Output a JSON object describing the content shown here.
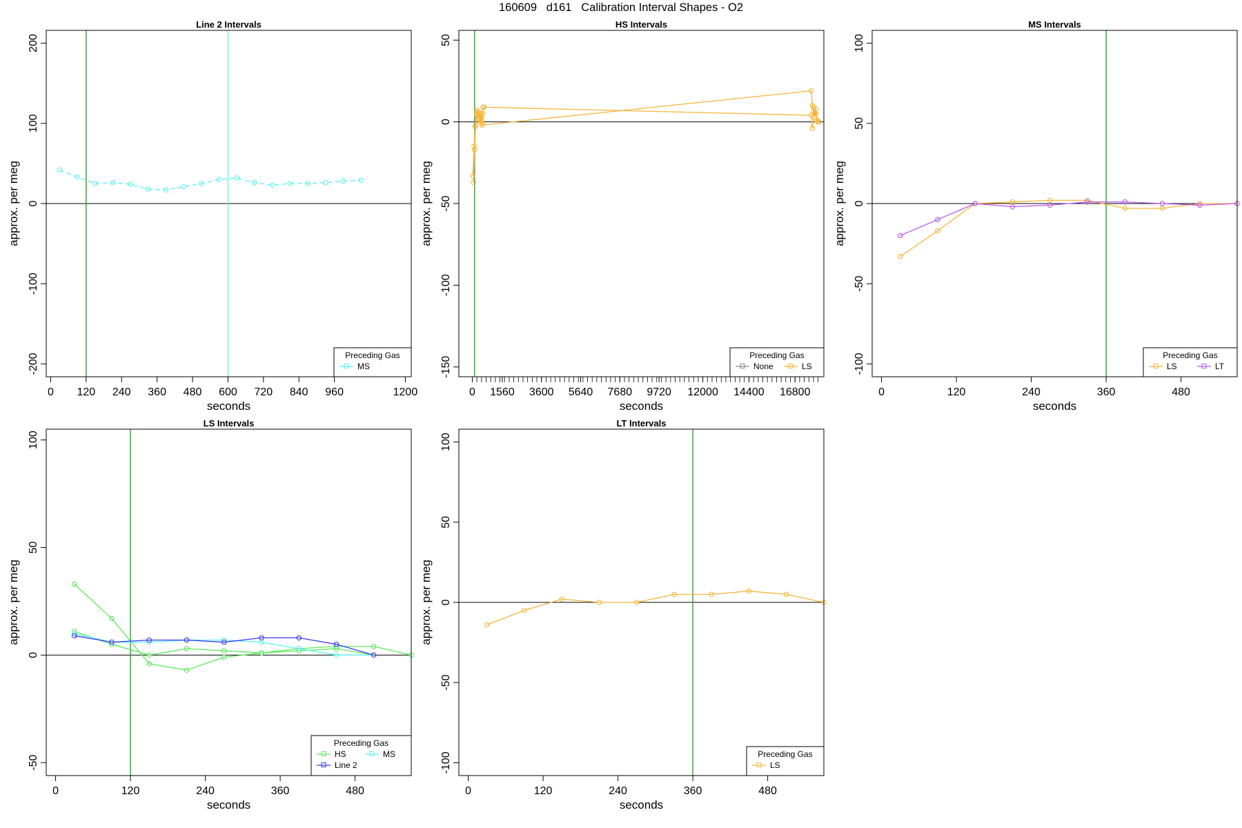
{
  "figure": {
    "title": "160609   d161   Calibration Interval Shapes - O2"
  },
  "colors": {
    "MS": "#5ef0f0",
    "LS": "#f5b53a",
    "HS": "#5de85d",
    "Line 2": "#3a3af0",
    "LT": "#b95ae8",
    "None": "#888888",
    "vline_green": "#2e8b2e",
    "vline_cyan": "#5ef0f0"
  },
  "chart_data": [
    {
      "type": "line",
      "title": "Line 2 Intervals",
      "xlabel": "seconds",
      "ylabel": "approx. per meg",
      "xlim": [
        -15,
        1220
      ],
      "ylim": [
        -216,
        216
      ],
      "xticks": [
        0,
        120,
        240,
        360,
        480,
        600,
        720,
        840,
        960,
        1200
      ],
      "yticks": [
        -200,
        -100,
        0,
        100,
        200
      ],
      "hline": 0,
      "vlines": [
        {
          "x": 120,
          "color": "vline_green"
        },
        {
          "x": 600,
          "color": "vline_cyan"
        }
      ],
      "legend": {
        "title": "Preceding Gas",
        "entries": [
          "MS"
        ],
        "position": "bottom-right"
      },
      "series": [
        {
          "name": "MS",
          "color": "MS",
          "dash": true,
          "x": [
            30,
            90,
            150,
            210,
            270,
            330,
            390,
            450,
            510,
            570,
            630,
            690,
            750,
            810,
            870,
            930,
            990,
            1050
          ],
          "y": [
            42,
            33,
            25,
            26,
            24,
            18,
            17,
            21,
            25,
            30,
            32,
            26,
            23,
            25,
            25,
            26,
            28,
            29
          ]
        }
      ]
    },
    {
      "type": "line",
      "title": "HS Intervals",
      "xlabel": "seconds",
      "ylabel": "approx. per meg",
      "xlim": [
        -700,
        18300
      ],
      "ylim": [
        -156,
        56
      ],
      "xticks": [
        0,
        1560,
        3600,
        5640,
        7680,
        9720,
        12000,
        14400,
        16800
      ],
      "yticks": [
        -150,
        -100,
        -50,
        0,
        50
      ],
      "hline": 0,
      "vlines": [
        {
          "x": 120,
          "color": "vline_green"
        }
      ],
      "legend": {
        "title": "Preceding Gas",
        "entries": [
          "None",
          "LS"
        ],
        "position": "bottom-right"
      },
      "series": [
        {
          "name": "LS",
          "color": "LS",
          "dash": false,
          "x": [
            30,
            90,
            150,
            210,
            270,
            330,
            390,
            450,
            510,
            570,
            510,
            17640,
            17700,
            17760,
            17820,
            17880,
            17940,
            18000,
            18060
          ],
          "y": [
            -33,
            -15,
            -3,
            6,
            7,
            3,
            5,
            1,
            -1,
            9,
            -2,
            19,
            10,
            6,
            3,
            8,
            1,
            0,
            0
          ]
        },
        {
          "name": "LS",
          "color": "LS",
          "dash": false,
          "x": [
            60,
            120,
            180,
            240,
            300,
            360,
            420,
            480,
            540,
            600,
            17640,
            17700,
            17760,
            17820,
            17880,
            17940,
            18000
          ],
          "y": [
            -37,
            -17,
            -2,
            4,
            2,
            6,
            0,
            3,
            5,
            9,
            4,
            -4,
            9,
            5,
            5,
            1,
            0
          ]
        }
      ]
    },
    {
      "type": "line",
      "title": "MS Intervals",
      "xlabel": "seconds",
      "ylabel": "approx. per meg",
      "xlim": [
        -15,
        570
      ],
      "ylim": [
        -108,
        108
      ],
      "xticks": [
        0,
        120,
        240,
        360,
        480
      ],
      "yticks": [
        -100,
        -50,
        0,
        50,
        100
      ],
      "hline": 0,
      "vlines": [
        {
          "x": 360,
          "color": "vline_green"
        }
      ],
      "legend": {
        "title": "Preceding Gas",
        "entries": [
          "LS",
          "LT"
        ],
        "position": "bottom-right"
      },
      "series": [
        {
          "name": "LS",
          "color": "LS",
          "dash": false,
          "x": [
            30,
            90,
            150,
            210,
            270,
            330,
            390,
            450,
            510,
            570
          ],
          "y": [
            -33,
            -17,
            0,
            1,
            2,
            2,
            -3,
            -3,
            0,
            0
          ]
        },
        {
          "name": "LT",
          "color": "LT",
          "dash": false,
          "x": [
            30,
            90,
            150,
            210,
            270,
            330,
            390,
            450,
            510,
            570
          ],
          "y": [
            -20,
            -10,
            0,
            -2,
            -1,
            1,
            1,
            0,
            -1,
            0
          ]
        }
      ]
    },
    {
      "type": "line",
      "title": "LS Intervals",
      "xlabel": "seconds",
      "ylabel": "approx. per meg",
      "xlim": [
        -15,
        570
      ],
      "ylim": [
        -56,
        105
      ],
      "xticks": [
        0,
        120,
        240,
        360,
        480
      ],
      "yticks": [
        -50,
        0,
        50,
        100
      ],
      "hline": 0,
      "vlines": [
        {
          "x": 120,
          "color": "vline_green"
        }
      ],
      "legend": {
        "title": "Preceding Gas",
        "entries": [
          "HS",
          "MS",
          "Line 2"
        ],
        "position": "bottom-right"
      },
      "series": [
        {
          "name": "HS",
          "color": "HS",
          "dash": false,
          "x": [
            30,
            90,
            150,
            210,
            270,
            330,
            390,
            450,
            510,
            570
          ],
          "y": [
            33,
            17,
            -4,
            -7,
            -1,
            1,
            3,
            4,
            4,
            0
          ]
        },
        {
          "name": "HS",
          "color": "HS",
          "dash": false,
          "x": [
            30,
            90,
            150,
            210,
            270,
            330,
            390,
            450,
            510
          ],
          "y": [
            11,
            5,
            0,
            3,
            2,
            1,
            2,
            3,
            0
          ]
        },
        {
          "name": "MS",
          "color": "MS",
          "dash": false,
          "x": [
            30,
            90,
            150,
            210,
            270,
            330,
            390,
            450,
            510
          ],
          "y": [
            10,
            6,
            6,
            7,
            7,
            6,
            3,
            0,
            0
          ]
        },
        {
          "name": "Line 2",
          "color": "Line 2",
          "dash": false,
          "x": [
            30,
            90,
            150,
            210,
            270,
            330,
            390,
            450,
            510
          ],
          "y": [
            9,
            6,
            7,
            7,
            6,
            8,
            8,
            5,
            0
          ]
        }
      ]
    },
    {
      "type": "line",
      "title": "LT Intervals",
      "xlabel": "seconds",
      "ylabel": "approx. per meg",
      "xlim": [
        -15,
        570
      ],
      "ylim": [
        -108,
        108
      ],
      "xticks": [
        0,
        120,
        240,
        360,
        480
      ],
      "yticks": [
        -100,
        -50,
        0,
        50,
        100
      ],
      "hline": 0,
      "vlines": [
        {
          "x": 360,
          "color": "vline_green"
        }
      ],
      "legend": {
        "title": "Preceding Gas",
        "entries": [
          "LS"
        ],
        "position": "bottom-right"
      },
      "series": [
        {
          "name": "LS",
          "color": "LS",
          "dash": false,
          "x": [
            30,
            90,
            150,
            210,
            270,
            330,
            390,
            450,
            510,
            570
          ],
          "y": [
            -14,
            -5,
            2,
            0,
            0,
            5,
            5,
            7,
            5,
            0
          ]
        }
      ]
    }
  ]
}
